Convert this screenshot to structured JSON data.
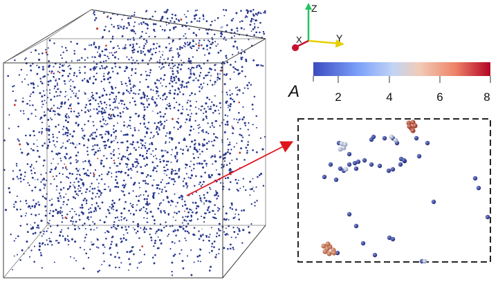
{
  "axes_gizmo": {
    "z_label": "Z",
    "y_label": "Y",
    "x_label": "X",
    "colors": {
      "z": "#22c55e",
      "y": "#e6d000",
      "x": "#c8102e"
    }
  },
  "colorbar": {
    "variable": "A",
    "min": 1,
    "max": 8,
    "ticks": [
      "2",
      "4",
      "6",
      "8"
    ],
    "colormap": [
      "#3b4cc0",
      "#7b9ff9",
      "#c0d4f5",
      "#f2cbb7",
      "#ee8468",
      "#b40426"
    ]
  },
  "particle_colors": {
    "low": "#2b3a8f",
    "mid": "#a9b7d8",
    "high": "#c0392b",
    "copper": "#c97c5d"
  },
  "inset": {
    "border_style": "dashed",
    "pointer_color": "#e0141c"
  }
}
